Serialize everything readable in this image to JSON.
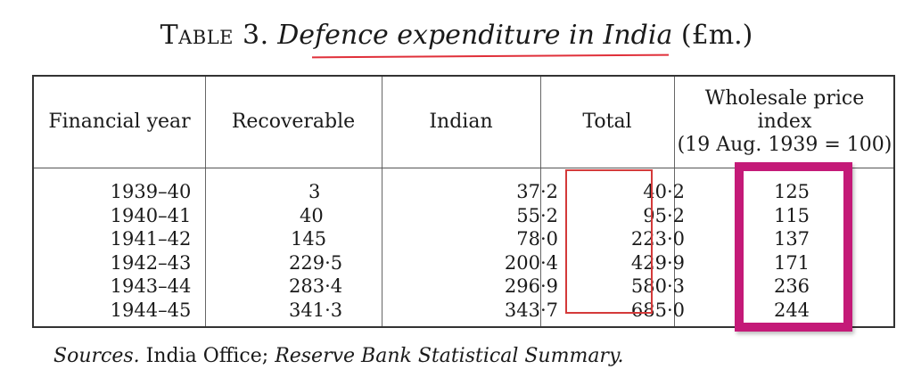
{
  "caption": {
    "label": "Table 3.",
    "title": "Defence expenditure in India",
    "unit": "(£m.)"
  },
  "table": {
    "headers": {
      "year": "Financial year",
      "recoverable": "Recoverable",
      "indian": "Indian",
      "total": "Total",
      "wpi": [
        "Wholesale price",
        "index",
        "(19 Aug. 1939 = 100)"
      ]
    },
    "rows": [
      {
        "year": "1939–40",
        "recoverable": "3",
        "indian": "37·2",
        "total": "40·2",
        "wpi": "125"
      },
      {
        "year": "1940–41",
        "recoverable": "40",
        "indian": "55·2",
        "total": "95·2",
        "wpi": "115"
      },
      {
        "year": "1941–42",
        "recoverable": "145",
        "indian": "78·0",
        "total": "223·0",
        "wpi": "137"
      },
      {
        "year": "1942–43",
        "recoverable": "229·5",
        "indian": "200·4",
        "total": "429·9",
        "wpi": "171"
      },
      {
        "year": "1943–44",
        "recoverable": "283·4",
        "indian": "296·9",
        "total": "580·3",
        "wpi": "236"
      },
      {
        "year": "1944–45",
        "recoverable": "341·3",
        "indian": "343·7",
        "total": "685·0",
        "wpi": "244"
      }
    ]
  },
  "sources": {
    "label": "Sources.",
    "plain": "India Office;",
    "italic": "Reserve Bank Statistical Summary."
  },
  "annotations": {
    "caption_underline_color": "#e0303a",
    "total_box_color": "#d43a3a",
    "wpi_box_color": "#c41a78"
  }
}
